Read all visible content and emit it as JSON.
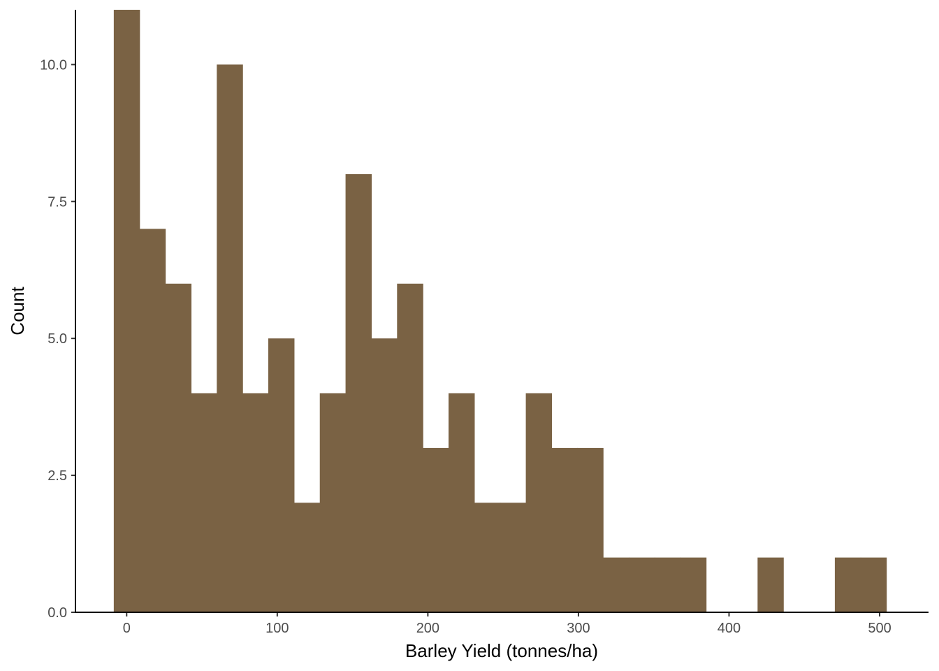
{
  "chart_data": {
    "type": "bar",
    "subtype": "histogram",
    "xlabel": "Barley Yield (tonnes/ha)",
    "ylabel": "Count",
    "xlim": [
      -34,
      532
    ],
    "ylim": [
      0,
      11
    ],
    "x_ticks": [
      0,
      100,
      200,
      300,
      400,
      500
    ],
    "x_tick_labels": [
      "0",
      "100",
      "200",
      "300",
      "400",
      "500"
    ],
    "y_ticks": [
      0,
      2.5,
      5,
      7.5,
      10
    ],
    "y_tick_labels": [
      "0.0",
      "2.5",
      "5.0",
      "7.5",
      "10.0"
    ],
    "bin_width": 17.1,
    "bin_start": -8.55,
    "counts": [
      11,
      7,
      6,
      4,
      10,
      4,
      5,
      2,
      4,
      8,
      5,
      6,
      3,
      4,
      2,
      2,
      4,
      3,
      3,
      1,
      1,
      1,
      1,
      0,
      0,
      1,
      0,
      0,
      1,
      1
    ],
    "grid": false,
    "bar_color": "#7a6244"
  }
}
